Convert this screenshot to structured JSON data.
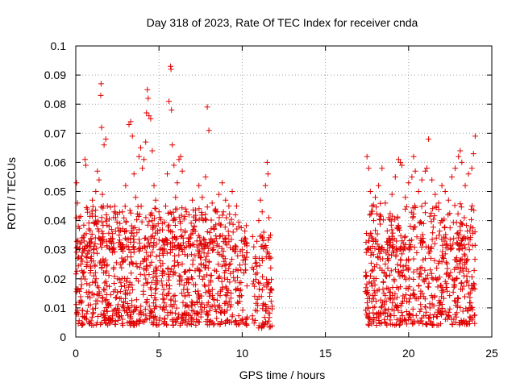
{
  "chart_data": {
    "type": "scatter",
    "title": "Day 318 of 2023, Rate Of TEC Index for receiver cnda",
    "xlabel": "GPS time / hours",
    "ylabel": "ROTI / TECUs",
    "xlim": [
      0,
      25
    ],
    "ylim": [
      0,
      0.1
    ],
    "x_ticks": [
      0,
      5,
      10,
      15,
      20,
      25
    ],
    "y_ticks": [
      0,
      0.01,
      0.02,
      0.03,
      0.04,
      0.05,
      0.06,
      0.07,
      0.08,
      0.09,
      0.1
    ],
    "x_tick_labels": [
      "0",
      "5",
      "10",
      "15",
      "20",
      "25"
    ],
    "y_tick_labels": [
      "0",
      "0.01",
      "0.02",
      "0.03",
      "0.04",
      "0.05",
      "0.06",
      "0.07",
      "0.08",
      "0.09",
      "0.1"
    ],
    "grid": true,
    "marker": "plus",
    "color": "#e00000",
    "series": [
      {
        "points": [
          [
            0.05,
            0.053
          ],
          [
            0.1,
            0.046
          ],
          [
            0.15,
            0.038
          ],
          [
            0.2,
            0.041
          ],
          [
            0.25,
            0.032
          ],
          [
            0.3,
            0.025
          ],
          [
            0.35,
            0.018
          ],
          [
            0.4,
            0.029
          ],
          [
            0.45,
            0.022
          ],
          [
            0.5,
            0.035
          ],
          [
            0.55,
            0.061
          ],
          [
            0.6,
            0.059
          ],
          [
            0.7,
            0.044
          ],
          [
            0.8,
            0.031
          ],
          [
            0.9,
            0.027
          ],
          [
            1.0,
            0.047
          ],
          [
            1.1,
            0.039
          ],
          [
            1.2,
            0.05
          ],
          [
            1.3,
            0.057
          ],
          [
            1.4,
            0.054
          ],
          [
            1.5,
            0.083
          ],
          [
            1.52,
            0.087
          ],
          [
            1.55,
            0.072
          ],
          [
            1.6,
            0.049
          ],
          [
            1.7,
            0.066
          ],
          [
            1.8,
            0.068
          ],
          [
            1.9,
            0.045
          ],
          [
            2.0,
            0.038
          ],
          [
            2.1,
            0.033
          ],
          [
            2.2,
            0.029
          ],
          [
            2.4,
            0.041
          ],
          [
            2.6,
            0.035
          ],
          [
            2.8,
            0.043
          ],
          [
            3.0,
            0.052
          ],
          [
            3.2,
            0.073
          ],
          [
            3.3,
            0.074
          ],
          [
            3.4,
            0.069
          ],
          [
            3.5,
            0.056
          ],
          [
            3.6,
            0.048
          ],
          [
            3.8,
            0.062
          ],
          [
            3.9,
            0.065
          ],
          [
            4.0,
            0.058
          ],
          [
            4.1,
            0.061
          ],
          [
            4.2,
            0.067
          ],
          [
            4.25,
            0.077
          ],
          [
            4.3,
            0.085
          ],
          [
            4.35,
            0.082
          ],
          [
            4.4,
            0.076
          ],
          [
            4.5,
            0.075
          ],
          [
            4.6,
            0.064
          ],
          [
            4.7,
            0.052
          ],
          [
            4.8,
            0.047
          ],
          [
            5.0,
            0.043
          ],
          [
            5.2,
            0.039
          ],
          [
            5.4,
            0.045
          ],
          [
            5.5,
            0.056
          ],
          [
            5.6,
            0.081
          ],
          [
            5.7,
            0.093
          ],
          [
            5.72,
            0.092
          ],
          [
            5.75,
            0.078
          ],
          [
            5.8,
            0.066
          ],
          [
            5.9,
            0.059
          ],
          [
            6.0,
            0.048
          ],
          [
            6.1,
            0.053
          ],
          [
            6.2,
            0.061
          ],
          [
            6.3,
            0.062
          ],
          [
            6.4,
            0.057
          ],
          [
            6.6,
            0.044
          ],
          [
            6.8,
            0.042
          ],
          [
            7.0,
            0.047
          ],
          [
            7.2,
            0.04
          ],
          [
            7.4,
            0.052
          ],
          [
            7.6,
            0.048
          ],
          [
            7.8,
            0.055
          ],
          [
            7.9,
            0.079
          ],
          [
            8.0,
            0.071
          ],
          [
            8.2,
            0.046
          ],
          [
            8.4,
            0.044
          ],
          [
            8.6,
            0.049
          ],
          [
            8.8,
            0.053
          ],
          [
            9.0,
            0.047
          ],
          [
            9.2,
            0.045
          ],
          [
            9.4,
            0.05
          ],
          [
            9.6,
            0.042
          ],
          [
            9.8,
            0.038
          ],
          [
            10.0,
            0.03
          ],
          [
            10.1,
            0.022
          ],
          [
            10.7,
            0.031
          ],
          [
            10.8,
            0.027
          ],
          [
            10.9,
            0.022
          ],
          [
            11.0,
            0.04
          ],
          [
            11.1,
            0.047
          ],
          [
            11.2,
            0.043
          ],
          [
            11.3,
            0.036
          ],
          [
            11.4,
            0.052
          ],
          [
            11.5,
            0.06
          ],
          [
            11.55,
            0.056
          ],
          [
            11.6,
            0.041
          ],
          [
            11.7,
            0.035
          ],
          [
            17.5,
            0.062
          ],
          [
            17.6,
            0.058
          ],
          [
            17.7,
            0.05
          ],
          [
            17.8,
            0.045
          ],
          [
            17.9,
            0.04
          ],
          [
            18.0,
            0.048
          ],
          [
            18.2,
            0.052
          ],
          [
            18.4,
            0.058
          ],
          [
            18.6,
            0.046
          ],
          [
            18.8,
            0.041
          ],
          [
            19.0,
            0.049
          ],
          [
            19.2,
            0.055
          ],
          [
            19.4,
            0.061
          ],
          [
            19.5,
            0.06
          ],
          [
            19.6,
            0.059
          ],
          [
            19.8,
            0.048
          ],
          [
            20.0,
            0.053
          ],
          [
            20.2,
            0.055
          ],
          [
            20.3,
            0.062
          ],
          [
            20.4,
            0.057
          ],
          [
            20.6,
            0.05
          ],
          [
            20.8,
            0.054
          ],
          [
            21.0,
            0.057
          ],
          [
            21.1,
            0.058
          ],
          [
            21.2,
            0.068
          ],
          [
            21.4,
            0.054
          ],
          [
            21.6,
            0.049
          ],
          [
            21.8,
            0.046
          ],
          [
            22.0,
            0.052
          ],
          [
            22.2,
            0.05
          ],
          [
            22.4,
            0.047
          ],
          [
            22.6,
            0.055
          ],
          [
            22.8,
            0.058
          ],
          [
            23.0,
            0.062
          ],
          [
            23.1,
            0.064
          ],
          [
            23.2,
            0.06
          ],
          [
            23.4,
            0.052
          ],
          [
            23.6,
            0.056
          ],
          [
            23.8,
            0.058
          ],
          [
            23.9,
            0.063
          ],
          [
            24.0,
            0.069
          ]
        ],
        "density_bands": [
          {
            "x_start": 0.0,
            "x_end": 10.3,
            "y_low": 0.004,
            "y_high": 0.034,
            "density": 0.9
          },
          {
            "x_start": 0.0,
            "x_end": 10.3,
            "y_low": 0.03,
            "y_high": 0.045,
            "density": 0.35
          },
          {
            "x_start": 10.6,
            "x_end": 11.8,
            "y_low": 0.003,
            "y_high": 0.036,
            "density": 0.9
          },
          {
            "x_start": 17.4,
            "x_end": 24.0,
            "y_low": 0.004,
            "y_high": 0.034,
            "density": 0.9
          },
          {
            "x_start": 17.4,
            "x_end": 24.0,
            "y_low": 0.03,
            "y_high": 0.046,
            "density": 0.3
          }
        ]
      }
    ]
  }
}
